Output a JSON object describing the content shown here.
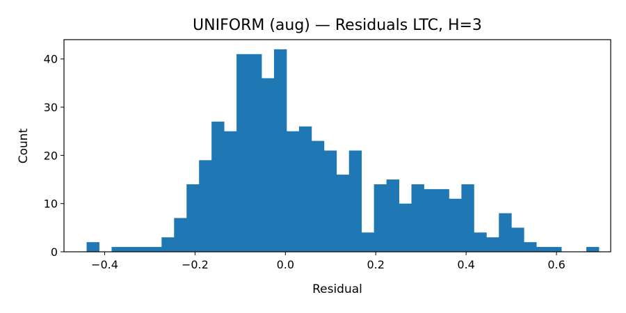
{
  "chart_data": {
    "type": "bar",
    "title": "UNIFORM (aug) — Residuals LTC, H=3",
    "xlabel": "Residual",
    "ylabel": "Count",
    "xlim": [
      -0.49,
      0.72
    ],
    "ylim": [
      0,
      44
    ],
    "x_ticks": [
      -0.4,
      -0.2,
      0.0,
      0.2,
      0.4,
      0.6
    ],
    "x_tick_labels": [
      "−0.4",
      "−0.2",
      "0.0",
      "0.2",
      "0.4",
      "0.6"
    ],
    "y_ticks": [
      0,
      10,
      20,
      30,
      40
    ],
    "y_tick_labels": [
      "0",
      "10",
      "20",
      "30",
      "40"
    ],
    "grid": false,
    "bar_color": "#1f77b4",
    "bin_start": -0.4399,
    "bin_width": 0.02765,
    "values": [
      2,
      0,
      1,
      1,
      1,
      1,
      3,
      7,
      14,
      19,
      27,
      25,
      41,
      41,
      36,
      42,
      25,
      26,
      23,
      21,
      16,
      21,
      4,
      14,
      15,
      10,
      14,
      13,
      13,
      11,
      14,
      4,
      3,
      8,
      5,
      2,
      1,
      1,
      0,
      0,
      1
    ]
  }
}
